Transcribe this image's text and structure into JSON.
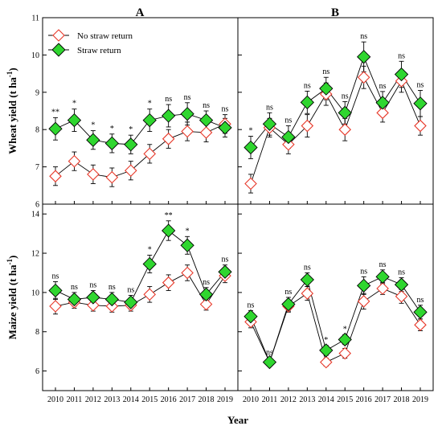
{
  "chart_data": {
    "type": "line",
    "xlabel": "Year",
    "panel_letters": [
      "A",
      "B"
    ],
    "legend": [
      "No straw return",
      "Straw return"
    ],
    "colors": {
      "no_straw": "#e8392a",
      "straw": "#2fd62f",
      "error_bar": "#000000"
    },
    "years": [
      "2010",
      "2011",
      "2012",
      "2013",
      "2014",
      "2015",
      "2016",
      "2017",
      "2018",
      "2019"
    ],
    "panels": [
      {
        "id": "wheat-A",
        "row": 0,
        "col": 0,
        "ylabel": "Wheat yield (t ha",
        "ylabel_sup": "-1",
        "ylabel_close": ")",
        "ylim": [
          6,
          11
        ],
        "yticks": [
          6,
          7,
          8,
          9,
          10,
          11
        ],
        "series": [
          {
            "name": "No straw return",
            "values": [
              6.75,
              7.15,
              6.8,
              6.72,
              6.9,
              7.35,
              7.75,
              7.95,
              7.92,
              8.15
            ],
            "errors": [
              0.25,
              0.25,
              0.25,
              0.25,
              0.25,
              0.25,
              0.25,
              0.25,
              0.25,
              0.25
            ]
          },
          {
            "name": "Straw return",
            "values": [
              8.02,
              8.25,
              7.72,
              7.63,
              7.6,
              8.25,
              8.37,
              8.42,
              8.25,
              8.05
            ],
            "errors": [
              0.3,
              0.3,
              0.25,
              0.25,
              0.25,
              0.3,
              0.3,
              0.3,
              0.25,
              0.25
            ]
          }
        ],
        "sig": [
          "**",
          "*",
          "*",
          "*",
          "*",
          "*",
          "ns",
          "ns",
          "ns",
          "ns"
        ]
      },
      {
        "id": "wheat-B",
        "row": 0,
        "col": 1,
        "ylim": [
          6,
          11
        ],
        "yticks": [
          6,
          7,
          8,
          9,
          10,
          11
        ],
        "series": [
          {
            "name": "No straw return",
            "values": [
              6.55,
              8.05,
              7.6,
              8.1,
              8.95,
              8.0,
              9.4,
              8.45,
              9.3,
              8.1
            ],
            "errors": [
              0.25,
              0.25,
              0.25,
              0.3,
              0.3,
              0.3,
              0.3,
              0.25,
              0.3,
              0.25
            ]
          },
          {
            "name": "Straw return",
            "values": [
              7.52,
              8.15,
              7.8,
              8.73,
              9.1,
              8.45,
              9.95,
              8.72,
              9.48,
              8.7
            ],
            "errors": [
              0.3,
              0.3,
              0.3,
              0.3,
              0.3,
              0.3,
              0.4,
              0.3,
              0.35,
              0.35
            ]
          }
        ],
        "sig": [
          "*",
          "ns",
          "ns",
          "ns",
          "ns",
          "ns",
          "ns",
          "ns",
          "ns",
          "ns"
        ]
      },
      {
        "id": "maize-A",
        "row": 1,
        "col": 0,
        "ylabel": "Maize yield (t ha",
        "ylabel_sup": "-1",
        "ylabel_close": ")",
        "ylim": [
          5,
          14.5
        ],
        "yticks": [
          6,
          8,
          10,
          12,
          14
        ],
        "series": [
          {
            "name": "No straw return",
            "values": [
              9.3,
              9.5,
              9.35,
              9.3,
              9.35,
              9.9,
              10.5,
              11.0,
              9.4,
              10.85
            ],
            "errors": [
              0.4,
              0.3,
              0.3,
              0.3,
              0.3,
              0.4,
              0.4,
              0.4,
              0.3,
              0.35
            ]
          },
          {
            "name": "Straw return",
            "values": [
              10.1,
              9.65,
              9.75,
              9.65,
              9.5,
              11.45,
              13.15,
              12.4,
              9.9,
              11.05
            ],
            "errors": [
              0.45,
              0.35,
              0.35,
              0.35,
              0.35,
              0.45,
              0.5,
              0.45,
              0.35,
              0.35
            ]
          }
        ],
        "sig": [
          "ns",
          "ns",
          "ns",
          "ns",
          "ns",
          "*",
          "**",
          "*",
          "ns",
          "ns"
        ]
      },
      {
        "id": "maize-B",
        "row": 1,
        "col": 1,
        "ylim": [
          5,
          14.5
        ],
        "yticks": [
          6,
          8,
          10,
          12,
          14
        ],
        "series": [
          {
            "name": "No straw return",
            "values": [
              8.5,
              6.45,
              9.3,
              9.95,
              6.45,
              6.9,
              9.55,
              10.2,
              9.8,
              8.35
            ],
            "errors": [
              0.3,
              0.2,
              0.3,
              0.35,
              0.2,
              0.25,
              0.4,
              0.3,
              0.35,
              0.3
            ]
          },
          {
            "name": "Straw return",
            "values": [
              8.78,
              6.45,
              9.4,
              10.65,
              7.05,
              7.6,
              10.35,
              10.8,
              10.4,
              9.0
            ],
            "errors": [
              0.3,
              0.2,
              0.35,
              0.35,
              0.25,
              0.25,
              0.45,
              0.35,
              0.35,
              0.35
            ]
          }
        ],
        "sig": [
          "ns",
          "ns",
          "ns",
          "ns",
          "*",
          "*",
          "ns",
          "ns",
          "ns",
          "ns"
        ]
      }
    ]
  }
}
